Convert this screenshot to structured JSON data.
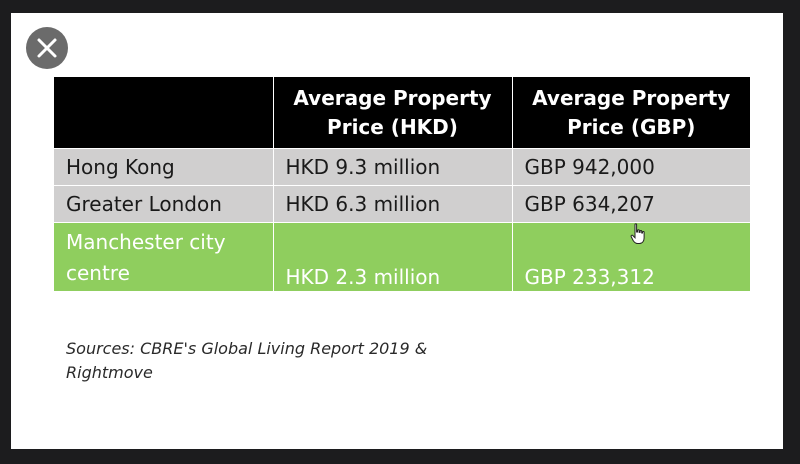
{
  "viewer": {
    "close_icon": "close-icon"
  },
  "table": {
    "headers": [
      "",
      "Average Property Price (HKD)",
      "Average Property Price (GBP)"
    ],
    "rows": [
      {
        "location": "Hong Kong",
        "hkd": "HKD 9.3 million",
        "gbp": "GBP 942,000"
      },
      {
        "location": "Greater London",
        "hkd": "HKD 6.3 million",
        "gbp": "GBP 634,207"
      },
      {
        "location": "Manchester city centre",
        "hkd": "HKD 2.3 million",
        "gbp": "GBP 233,312"
      }
    ],
    "colors": {
      "header_bg": "#000000",
      "row_bg": "#d0cfcf",
      "highlight_bg": "#8fce5e"
    }
  },
  "sources": {
    "line1": "Sources: CBRE's Global Living Report 2019 &",
    "line2": "Rightmove"
  },
  "pointer": {
    "icon": "hand-pointer-icon"
  }
}
